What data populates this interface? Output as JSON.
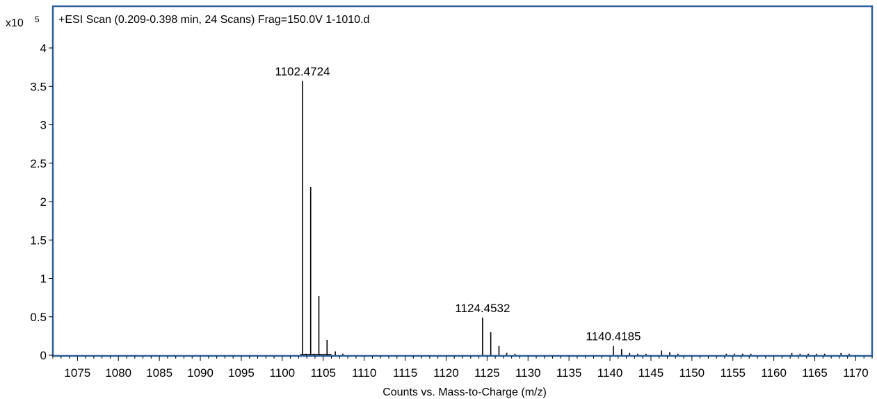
{
  "chart_data": {
    "type": "bar",
    "title": "+ESI Scan (0.209-0.398 min, 24 Scans) Frag=150.0V 1-1010.d",
    "xlabel": "Counts vs. Mass-to-Charge (m/z)",
    "y_exponent_base": "x10",
    "y_exponent_power": "5",
    "xlim": [
      1072,
      1172
    ],
    "ylim": [
      0,
      4.3
    ],
    "x_ticks": [
      1075,
      1080,
      1085,
      1090,
      1095,
      1100,
      1105,
      1110,
      1115,
      1120,
      1125,
      1130,
      1135,
      1140,
      1145,
      1150,
      1155,
      1160,
      1165,
      1170
    ],
    "y_ticks": [
      {
        "value": 0,
        "label": "0"
      },
      {
        "value": 0.5,
        "label": "0.5"
      },
      {
        "value": 1,
        "label": "1"
      },
      {
        "value": 1.5,
        "label": "1.5"
      },
      {
        "value": 2,
        "label": "2"
      },
      {
        "value": 2.5,
        "label": "2.5"
      },
      {
        "value": 3,
        "label": "3"
      },
      {
        "value": 3.5,
        "label": "3.5"
      },
      {
        "value": 4,
        "label": "4"
      }
    ],
    "grid": false,
    "color": "#000000",
    "frame_color": "#2e5f9e",
    "peaks": [
      {
        "x": 1102.47,
        "y": 3.57
      },
      {
        "x": 1102.9,
        "y": 0.02
      },
      {
        "x": 1103.47,
        "y": 2.19
      },
      {
        "x": 1103.9,
        "y": 0.02
      },
      {
        "x": 1104.47,
        "y": 0.77
      },
      {
        "x": 1105.47,
        "y": 0.2
      },
      {
        "x": 1106.47,
        "y": 0.05
      },
      {
        "x": 1107.4,
        "y": 0.02
      },
      {
        "x": 1124.45,
        "y": 0.49
      },
      {
        "x": 1125.45,
        "y": 0.3
      },
      {
        "x": 1126.45,
        "y": 0.12
      },
      {
        "x": 1127.4,
        "y": 0.03
      },
      {
        "x": 1128.4,
        "y": 0.02
      },
      {
        "x": 1140.42,
        "y": 0.12
      },
      {
        "x": 1141.42,
        "y": 0.08
      },
      {
        "x": 1142.4,
        "y": 0.03
      },
      {
        "x": 1143.4,
        "y": 0.02
      },
      {
        "x": 1144.4,
        "y": 0.02
      },
      {
        "x": 1146.3,
        "y": 0.06
      },
      {
        "x": 1147.3,
        "y": 0.04
      },
      {
        "x": 1148.3,
        "y": 0.02
      },
      {
        "x": 1154.2,
        "y": 0.02
      },
      {
        "x": 1155.2,
        "y": 0.02
      },
      {
        "x": 1156.2,
        "y": 0.02
      },
      {
        "x": 1157.2,
        "y": 0.02
      },
      {
        "x": 1162.2,
        "y": 0.03
      },
      {
        "x": 1163.2,
        "y": 0.02
      },
      {
        "x": 1164.2,
        "y": 0.02
      },
      {
        "x": 1165.2,
        "y": 0.02
      },
      {
        "x": 1166.2,
        "y": 0.02
      },
      {
        "x": 1168.2,
        "y": 0.03
      },
      {
        "x": 1169.2,
        "y": 0.02
      }
    ],
    "peak_labels": [
      {
        "x": 1102.4724,
        "y": 3.57,
        "text": "1102.4724"
      },
      {
        "x": 1124.4532,
        "y": 0.49,
        "text": "1124.4532"
      },
      {
        "x": 1140.4185,
        "y": 0.12,
        "text": "1140.4185"
      }
    ]
  }
}
